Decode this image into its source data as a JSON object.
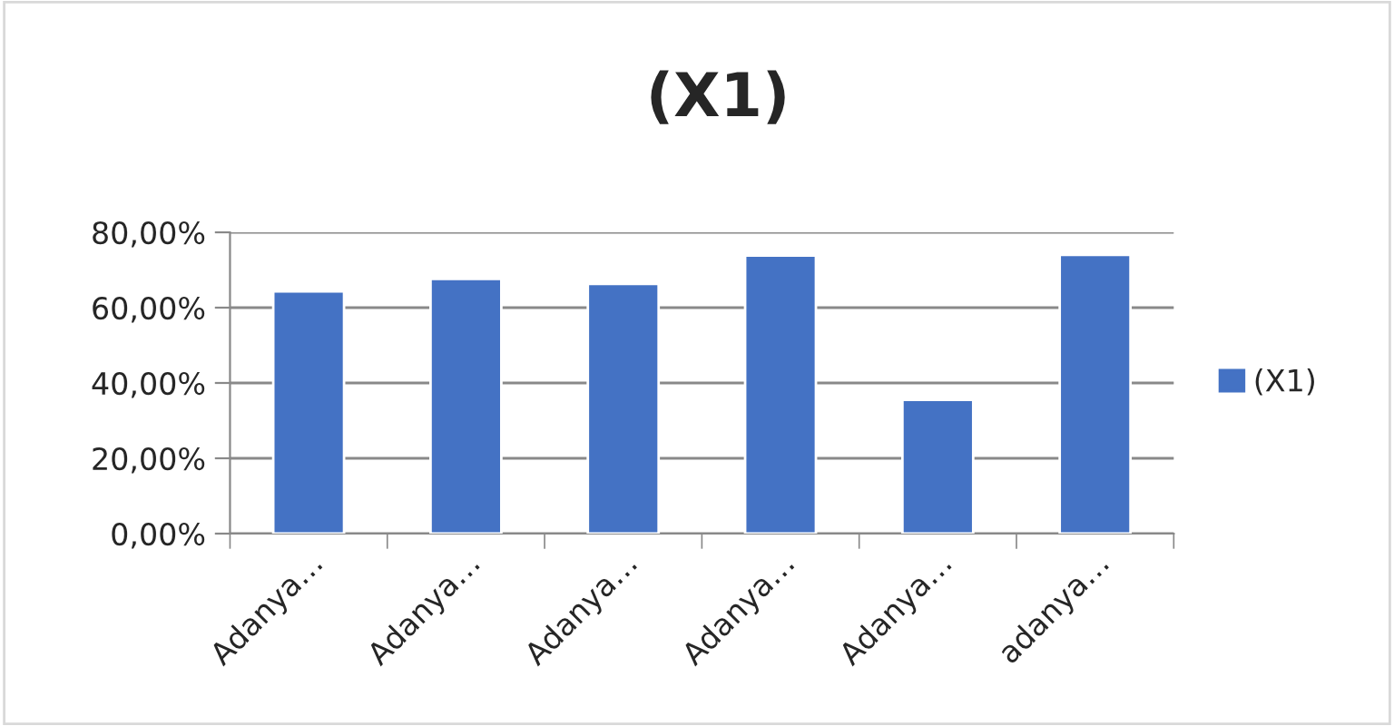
{
  "chart_data": {
    "type": "bar",
    "title": "(X1)",
    "categories": [
      "Adanya…",
      "Adanya…",
      "Adanya…",
      "Adanya…",
      "Adanya…",
      "adanya…"
    ],
    "series": [
      {
        "name": "(X1)",
        "color": "#4472c4",
        "values": [
          64.3,
          67.6,
          66.3,
          73.8,
          35.5,
          74.0
        ]
      }
    ],
    "ylim": [
      0,
      80
    ],
    "yticks": [
      {
        "value": 0,
        "label": "0,00%"
      },
      {
        "value": 20,
        "label": "20,00%"
      },
      {
        "value": 40,
        "label": "40,00%"
      },
      {
        "value": 60,
        "label": "60,00%"
      },
      {
        "value": 80,
        "label": "80,00%"
      }
    ],
    "grid": "y",
    "legend": "right"
  }
}
